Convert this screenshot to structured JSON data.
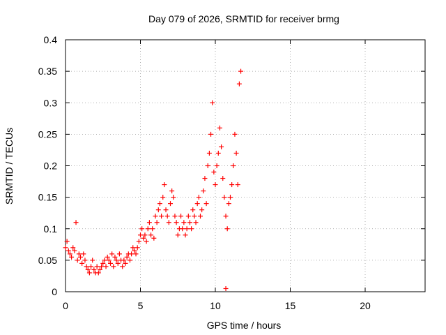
{
  "chart_data": {
    "type": "scatter",
    "title": "Day 079 of 2026, SRMTID for receiver brmg",
    "xlabel": "GPS time / hours",
    "ylabel": "SRMTID / TECUs",
    "xlim": [
      0,
      24
    ],
    "ylim": [
      0,
      0.4
    ],
    "x_ticks": [
      0,
      5,
      10,
      15,
      20
    ],
    "y_ticks": [
      0,
      0.05,
      0.1,
      0.15,
      0.2,
      0.25,
      0.3,
      0.35,
      0.4
    ],
    "x_tick_labels": [
      "0",
      "5",
      "10",
      "15",
      "20"
    ],
    "y_tick_labels": [
      "0",
      "0.05",
      "0.1",
      "0.15",
      "0.2",
      "0.25",
      "0.3",
      "0.35",
      "0.4"
    ],
    "grid": true,
    "marker": "+",
    "color": "#ff0000",
    "series": [
      {
        "name": "SRMTID",
        "x": [
          0.0,
          0.1,
          0.2,
          0.3,
          0.4,
          0.5,
          0.6,
          0.7,
          0.8,
          0.9,
          1.0,
          1.1,
          1.2,
          1.3,
          1.4,
          1.5,
          1.6,
          1.7,
          1.8,
          1.9,
          2.0,
          2.1,
          2.2,
          2.3,
          2.4,
          2.5,
          2.6,
          2.7,
          2.8,
          2.9,
          3.0,
          3.1,
          3.2,
          3.3,
          3.4,
          3.5,
          3.6,
          3.7,
          3.8,
          3.9,
          4.0,
          4.1,
          4.2,
          4.3,
          4.4,
          4.5,
          4.6,
          4.7,
          4.8,
          4.9,
          5.0,
          5.1,
          5.2,
          5.3,
          5.4,
          5.5,
          5.6,
          5.7,
          5.8,
          5.9,
          6.0,
          6.1,
          6.2,
          6.3,
          6.4,
          6.5,
          6.6,
          6.7,
          6.8,
          6.9,
          7.0,
          7.1,
          7.2,
          7.3,
          7.4,
          7.5,
          7.6,
          7.7,
          7.8,
          7.9,
          8.0,
          8.1,
          8.2,
          8.3,
          8.4,
          8.5,
          8.6,
          8.7,
          8.8,
          8.9,
          9.0,
          9.1,
          9.2,
          9.3,
          9.4,
          9.5,
          9.6,
          9.7,
          9.8,
          9.9,
          10.0,
          10.1,
          10.2,
          10.3,
          10.4,
          10.5,
          10.6,
          10.7,
          10.8,
          10.9,
          11.0,
          11.1,
          11.2,
          11.3,
          11.4,
          11.5,
          11.6,
          11.7,
          10.7
        ],
        "y": [
          0.07,
          0.08,
          0.065,
          0.06,
          0.055,
          0.07,
          0.065,
          0.11,
          0.05,
          0.06,
          0.055,
          0.045,
          0.06,
          0.05,
          0.04,
          0.035,
          0.03,
          0.04,
          0.05,
          0.035,
          0.03,
          0.04,
          0.03,
          0.035,
          0.04,
          0.045,
          0.05,
          0.04,
          0.055,
          0.05,
          0.045,
          0.06,
          0.04,
          0.055,
          0.05,
          0.045,
          0.06,
          0.05,
          0.04,
          0.05,
          0.045,
          0.055,
          0.06,
          0.05,
          0.06,
          0.07,
          0.065,
          0.06,
          0.07,
          0.08,
          0.09,
          0.1,
          0.085,
          0.09,
          0.08,
          0.1,
          0.11,
          0.09,
          0.1,
          0.085,
          0.12,
          0.11,
          0.13,
          0.14,
          0.12,
          0.15,
          0.17,
          0.13,
          0.12,
          0.11,
          0.14,
          0.16,
          0.15,
          0.12,
          0.11,
          0.09,
          0.1,
          0.12,
          0.1,
          0.11,
          0.09,
          0.1,
          0.12,
          0.11,
          0.1,
          0.13,
          0.12,
          0.11,
          0.14,
          0.15,
          0.12,
          0.13,
          0.16,
          0.18,
          0.14,
          0.2,
          0.22,
          0.25,
          0.3,
          0.19,
          0.17,
          0.2,
          0.22,
          0.26,
          0.23,
          0.18,
          0.15,
          0.12,
          0.1,
          0.14,
          0.15,
          0.17,
          0.2,
          0.25,
          0.22,
          0.17,
          0.33,
          0.35,
          0.005
        ]
      }
    ]
  }
}
